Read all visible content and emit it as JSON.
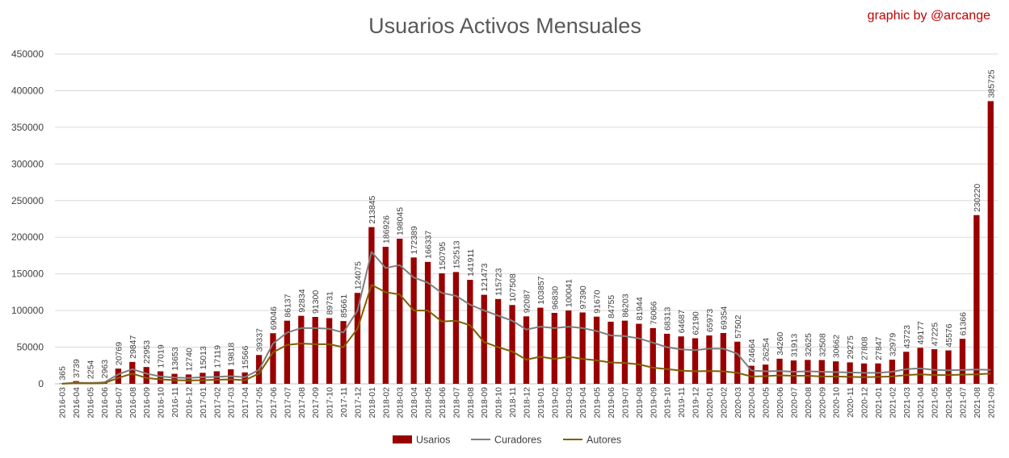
{
  "chart_data": {
    "type": "bar",
    "title": "Usuarios Activos Mensuales",
    "credit": "graphic by @arcange",
    "xlabel": "",
    "ylabel": "",
    "ylim": [
      0,
      450000
    ],
    "yticks": [
      0,
      50000,
      100000,
      150000,
      200000,
      250000,
      300000,
      350000,
      400000,
      450000
    ],
    "grid": true,
    "legend_position": "bottom",
    "categories": [
      "2016-03",
      "2016-04",
      "2016-05",
      "2016-06",
      "2016-07",
      "2016-08",
      "2016-09",
      "2016-10",
      "2016-11",
      "2016-12",
      "2017-01",
      "2017-02",
      "2017-03",
      "2017-04",
      "2017-05",
      "2017-06",
      "2017-07",
      "2017-08",
      "2017-09",
      "2017-10",
      "2017-11",
      "2017-12",
      "2018-01",
      "2018-02",
      "2018-03",
      "2018-04",
      "2018-05",
      "2018-06",
      "2018-07",
      "2018-08",
      "2018-09",
      "2018-10",
      "2018-11",
      "2018-12",
      "2019-01",
      "2019-02",
      "2019-03",
      "2019-04",
      "2019-05",
      "2019-06",
      "2019-07",
      "2019-08",
      "2019-09",
      "2019-10",
      "2019-11",
      "2019-12",
      "2020-01",
      "2020-02",
      "2020-03",
      "2020-04",
      "2020-05",
      "2020-06",
      "2020-07",
      "2020-08",
      "2020-09",
      "2020-10",
      "2020-11",
      "2020-12",
      "2021-01",
      "2021-02",
      "2021-03",
      "2021-04",
      "2021-05",
      "2021-06",
      "2021-07",
      "2021-08",
      "2021-09"
    ],
    "series": [
      {
        "name": "Usarios",
        "kind": "bar",
        "color": "#990000",
        "values": [
          365,
          3739,
          2254,
          2963,
          20769,
          29847,
          22953,
          17019,
          13653,
          12740,
          15013,
          17119,
          19818,
          15566,
          39337,
          69046,
          86137,
          92834,
          91300,
          89731,
          85661,
          124075,
          213845,
          186926,
          198045,
          172389,
          166337,
          150795,
          152513,
          141911,
          121473,
          115723,
          107508,
          92087,
          103857,
          96830,
          100041,
          97390,
          91670,
          84755,
          86203,
          81944,
          76066,
          68313,
          64687,
          62190,
          65973,
          69354,
          57502,
          24664,
          26254,
          34260,
          31913,
          32625,
          32508,
          30662,
          29275,
          27808,
          27847,
          32979,
          43723,
          49177,
          47225,
          45576,
          61366,
          230220,
          385725
        ]
      },
      {
        "name": "Curadores",
        "kind": "line",
        "color": "#7f7f7f",
        "values": [
          200,
          1500,
          1200,
          1800,
          13000,
          20000,
          14000,
          10000,
          8500,
          8000,
          9000,
          9500,
          10500,
          9000,
          19000,
          55000,
          70000,
          76000,
          76000,
          75000,
          70000,
          100000,
          180000,
          158000,
          162000,
          145000,
          138000,
          124000,
          120000,
          108000,
          100000,
          93000,
          86000,
          74000,
          78000,
          76000,
          78000,
          76000,
          72000,
          66000,
          65000,
          62000,
          56000,
          50000,
          47000,
          46000,
          48000,
          48000,
          41000,
          18000,
          17000,
          17500,
          16500,
          17000,
          16500,
          16000,
          15500,
          15000,
          15000,
          16500,
          20000,
          21000,
          19000,
          18500,
          19000,
          19500,
          19000
        ]
      },
      {
        "name": "Autores",
        "kind": "line",
        "color": "#7f6000",
        "values": [
          100,
          800,
          600,
          900,
          8000,
          14000,
          8000,
          6000,
          5000,
          4500,
          5000,
          5500,
          6000,
          5000,
          14000,
          43000,
          53000,
          55000,
          54000,
          54000,
          50000,
          75000,
          135000,
          125000,
          122000,
          100000,
          100000,
          85000,
          86000,
          80000,
          57000,
          50000,
          44000,
          33000,
          37000,
          34000,
          37000,
          34000,
          32000,
          29000,
          28500,
          26500,
          22000,
          20000,
          18000,
          17000,
          17500,
          17000,
          15000,
          10000,
          10500,
          11500,
          11000,
          11000,
          10000,
          10000,
          9500,
          9000,
          9500,
          10000,
          12000,
          13000,
          12000,
          12000,
          12500,
          13000,
          14000
        ]
      }
    ]
  }
}
